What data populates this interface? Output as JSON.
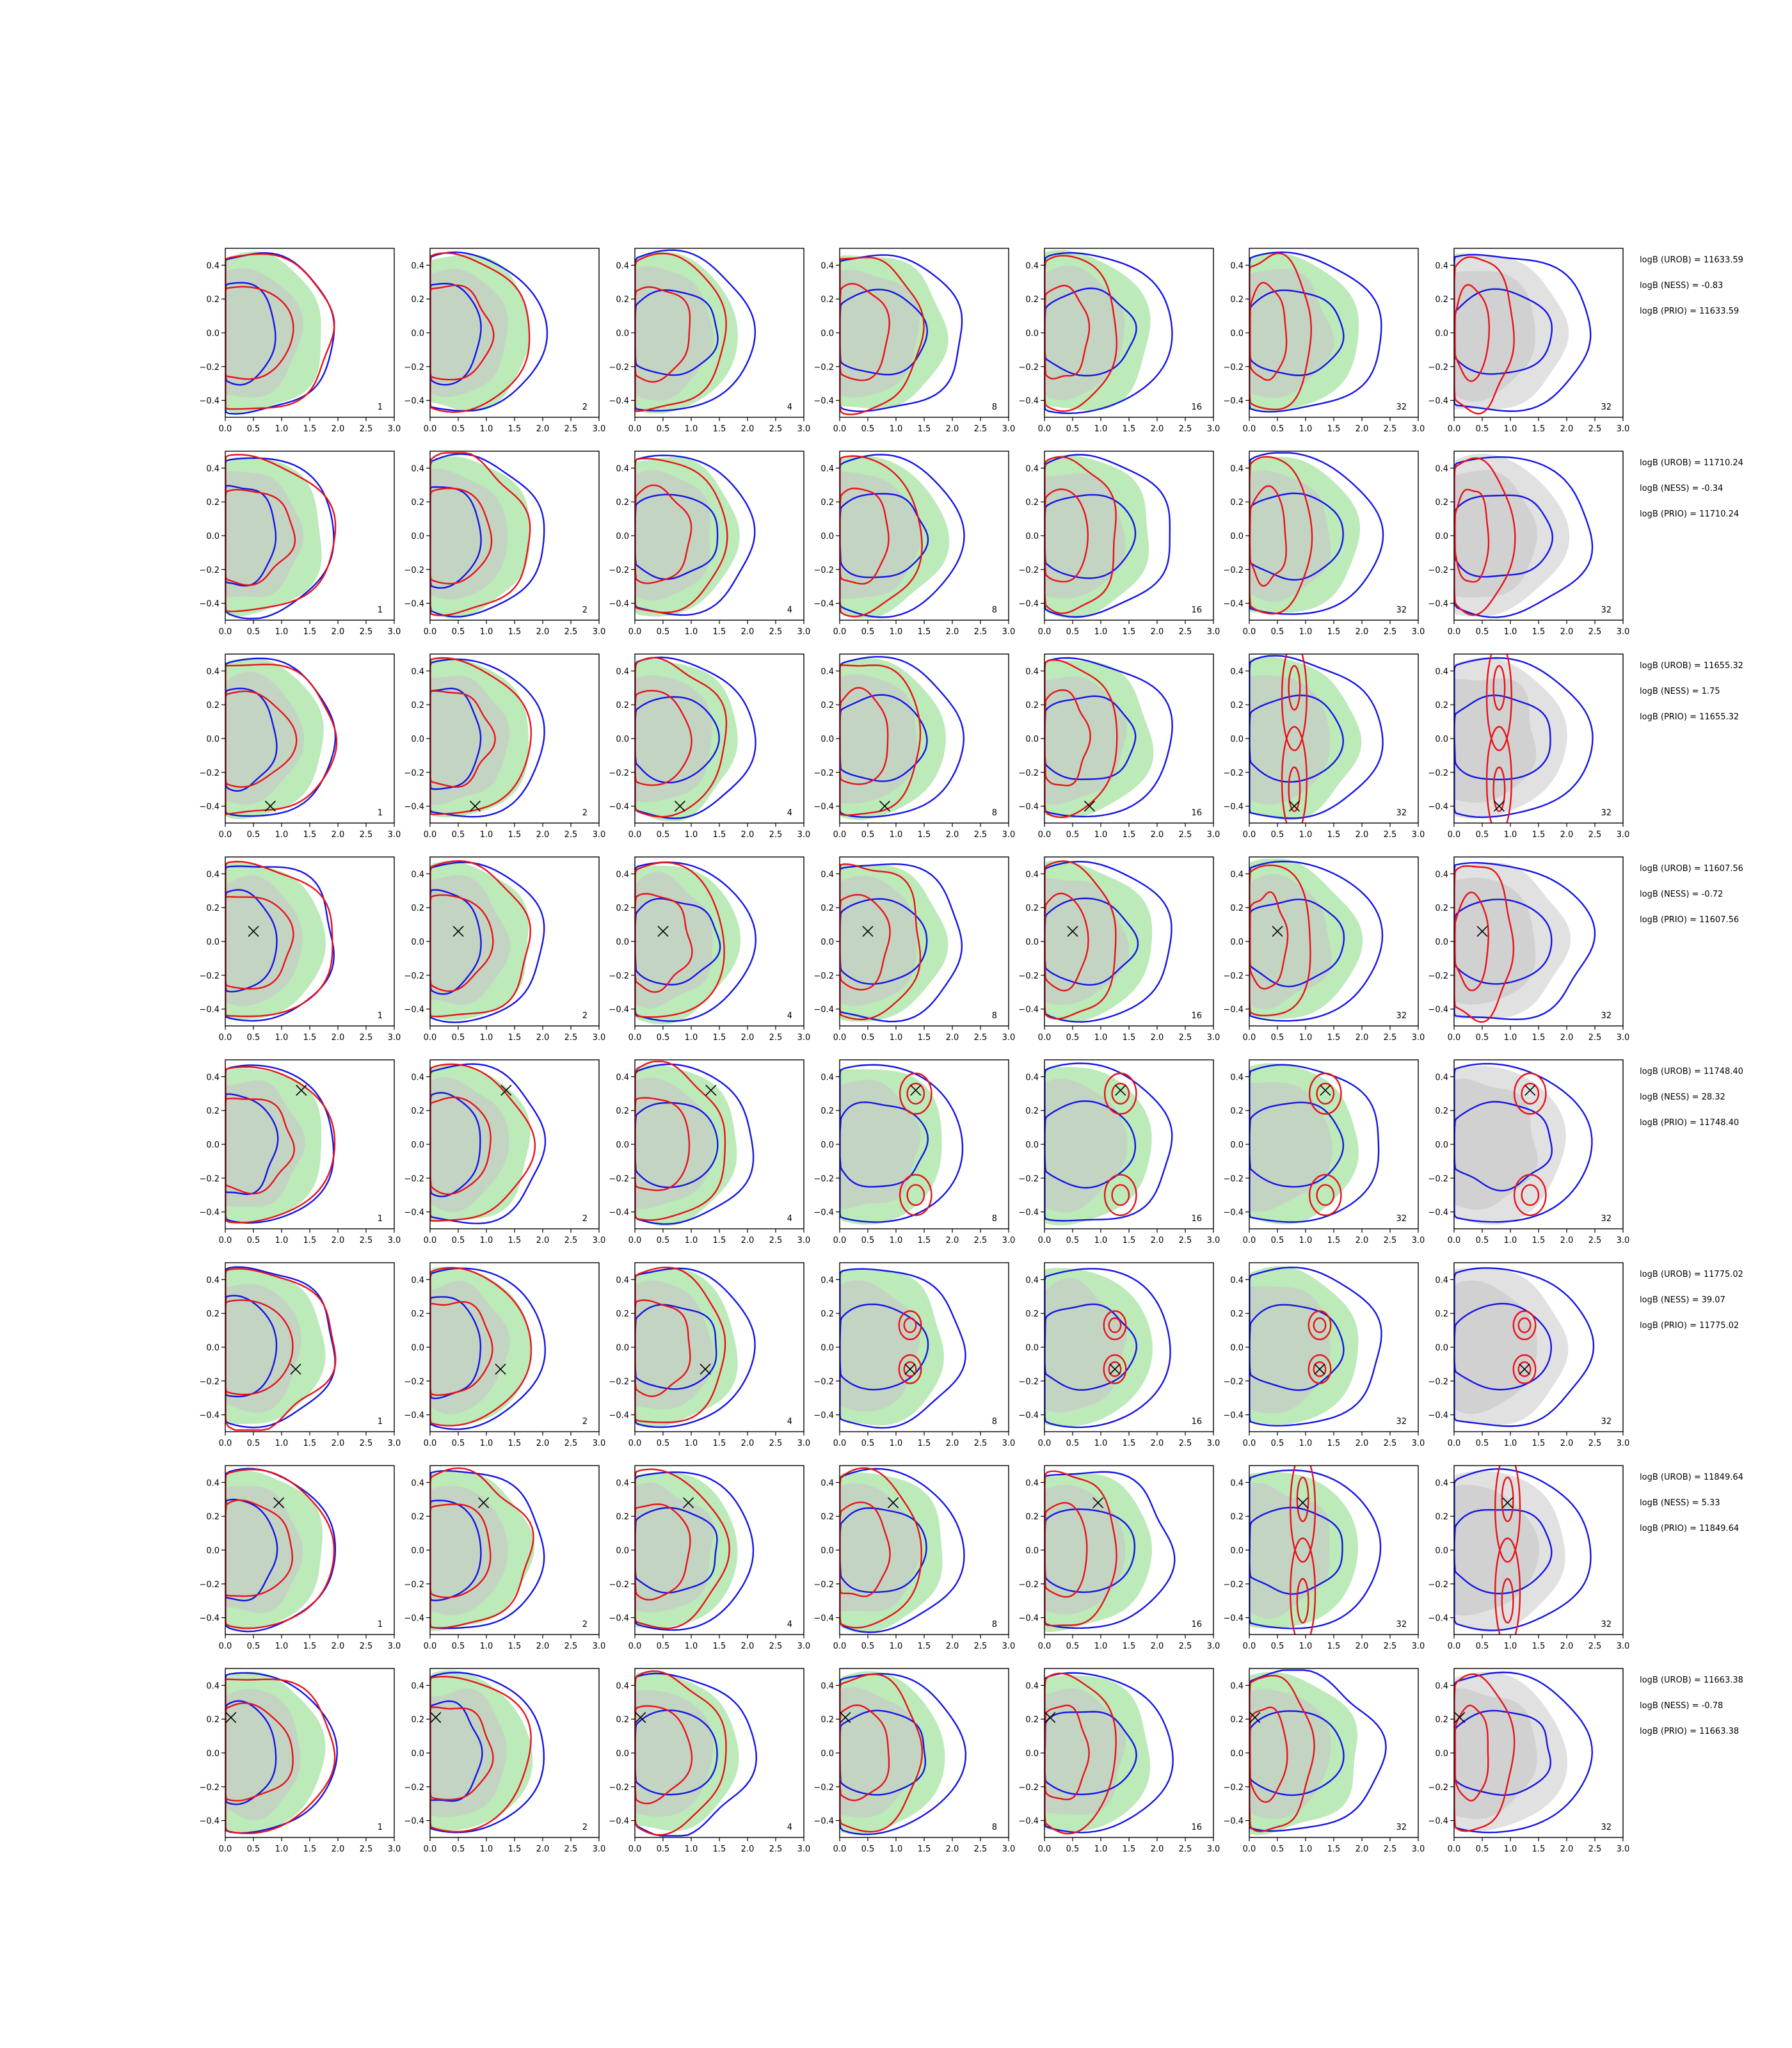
{
  "figure": {
    "rows": 8,
    "columns": 7,
    "colors": {
      "green_fill": "#a6e3a1",
      "grey_fill": "#c8c8c8",
      "red_contour": "#e8131a",
      "blue_contour": "#1414e6",
      "marker": "#000000"
    },
    "x_ticks": [
      "0.0",
      "0.5",
      "1.0",
      "1.5",
      "2.0",
      "2.5",
      "3.0"
    ],
    "y_ticks": [
      "0.4",
      "0.2",
      "0.0",
      "−0.2",
      "−0.4"
    ],
    "panel_labels": [
      "1",
      "2",
      "4",
      "8",
      "16",
      "32",
      "32"
    ]
  },
  "chart_data": {
    "type": "contour",
    "xlim": [
      0,
      3
    ],
    "ylim": [
      -0.5,
      0.5
    ],
    "grid": false,
    "columns": [
      "1",
      "2",
      "4",
      "8",
      "16",
      "32",
      "32"
    ],
    "rows": [
      {
        "notes": [
          "logB (UROB) = 11633.59",
          "logB (NESS) = -0.83",
          "logB (PRIO) = 11633.59"
        ],
        "marker": null,
        "red_mode": "uni"
      },
      {
        "notes": [
          "logB (UROB) = 11710.24",
          "logB (NESS) = -0.34",
          "logB (PRIO) = 11710.24"
        ],
        "marker": null,
        "red_mode": "uni"
      },
      {
        "notes": [
          "logB (UROB) = 11655.32",
          "logB (NESS) = 1.75",
          "logB (PRIO) = 11655.32"
        ],
        "marker": {
          "x": 0.8,
          "y": -0.4
        },
        "red_mode": "vertical"
      },
      {
        "notes": [
          "logB (UROB) = 11607.56",
          "logB (NESS) = -0.72",
          "logB (PRIO) = 11607.56"
        ],
        "marker": {
          "x": 0.5,
          "y": 0.06
        },
        "red_mode": "uni"
      },
      {
        "notes": [
          "logB (UROB) = 11748.40",
          "logB (NESS) = 28.32",
          "logB (PRIO) = 11748.40"
        ],
        "marker": {
          "x": 1.35,
          "y": 0.32
        },
        "red_mode": "bimodal"
      },
      {
        "notes": [
          "logB (UROB) = 11775.02",
          "logB (NESS) = 39.07",
          "logB (PRIO) = 11775.02"
        ],
        "marker": {
          "x": 1.25,
          "y": -0.13
        },
        "red_mode": "bimodal-small"
      },
      {
        "notes": [
          "logB (UROB) = 11849.64",
          "logB (NESS) = 5.33",
          "logB (PRIO) = 11849.64"
        ],
        "marker": {
          "x": 0.95,
          "y": 0.28
        },
        "red_mode": "pinch"
      },
      {
        "notes": [
          "logB (UROB) = 11663.38",
          "logB (NESS) = -0.78",
          "logB (PRIO) = 11663.38"
        ],
        "marker": {
          "x": 0.1,
          "y": 0.21
        },
        "red_mode": "uni"
      }
    ]
  }
}
